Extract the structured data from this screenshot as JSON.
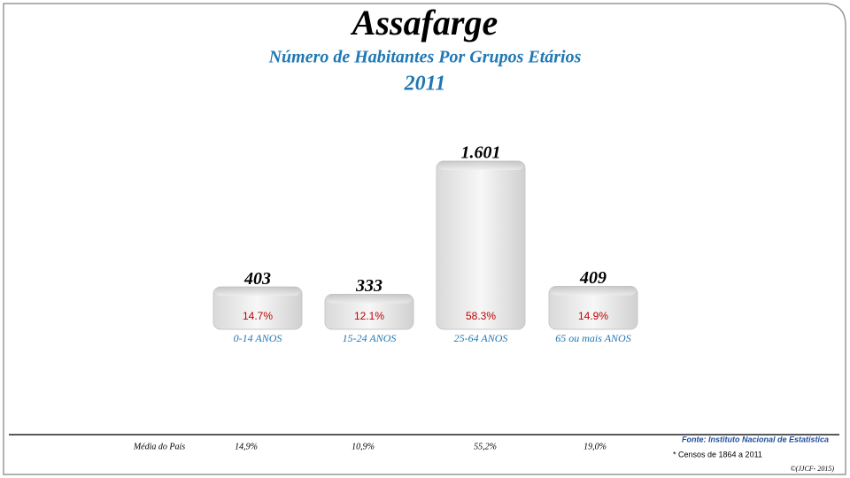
{
  "chart_data": {
    "type": "bar",
    "title": "Assafarge",
    "subtitle": "Número de Habitantes Por Grupos Etários",
    "year": "2011",
    "categories": [
      "0-14 ANOS",
      "15-24 ANOS",
      "25-64 ANOS",
      "65 ou mais ANOS"
    ],
    "values": [
      403,
      333,
      1601,
      409
    ],
    "value_labels": [
      "403",
      "333",
      "1.601",
      "409"
    ],
    "shares": {
      "values": [
        14.7,
        12.1,
        58.3,
        14.9
      ],
      "value_labels": [
        "14.7%",
        "12.1%",
        "58.3%",
        "14.9%"
      ]
    },
    "national_average": {
      "label": "Média do País",
      "values": [
        14.9,
        10.9,
        55.2,
        19.0
      ],
      "value_labels": [
        "14,9%",
        "10,9%",
        "55,2%",
        "19,0%"
      ]
    },
    "source": "Fonte: Instituto Nacional de Estatística",
    "note": "* Censos de 1864 a 2011",
    "credit": "©(JJCF- 2015)"
  }
}
